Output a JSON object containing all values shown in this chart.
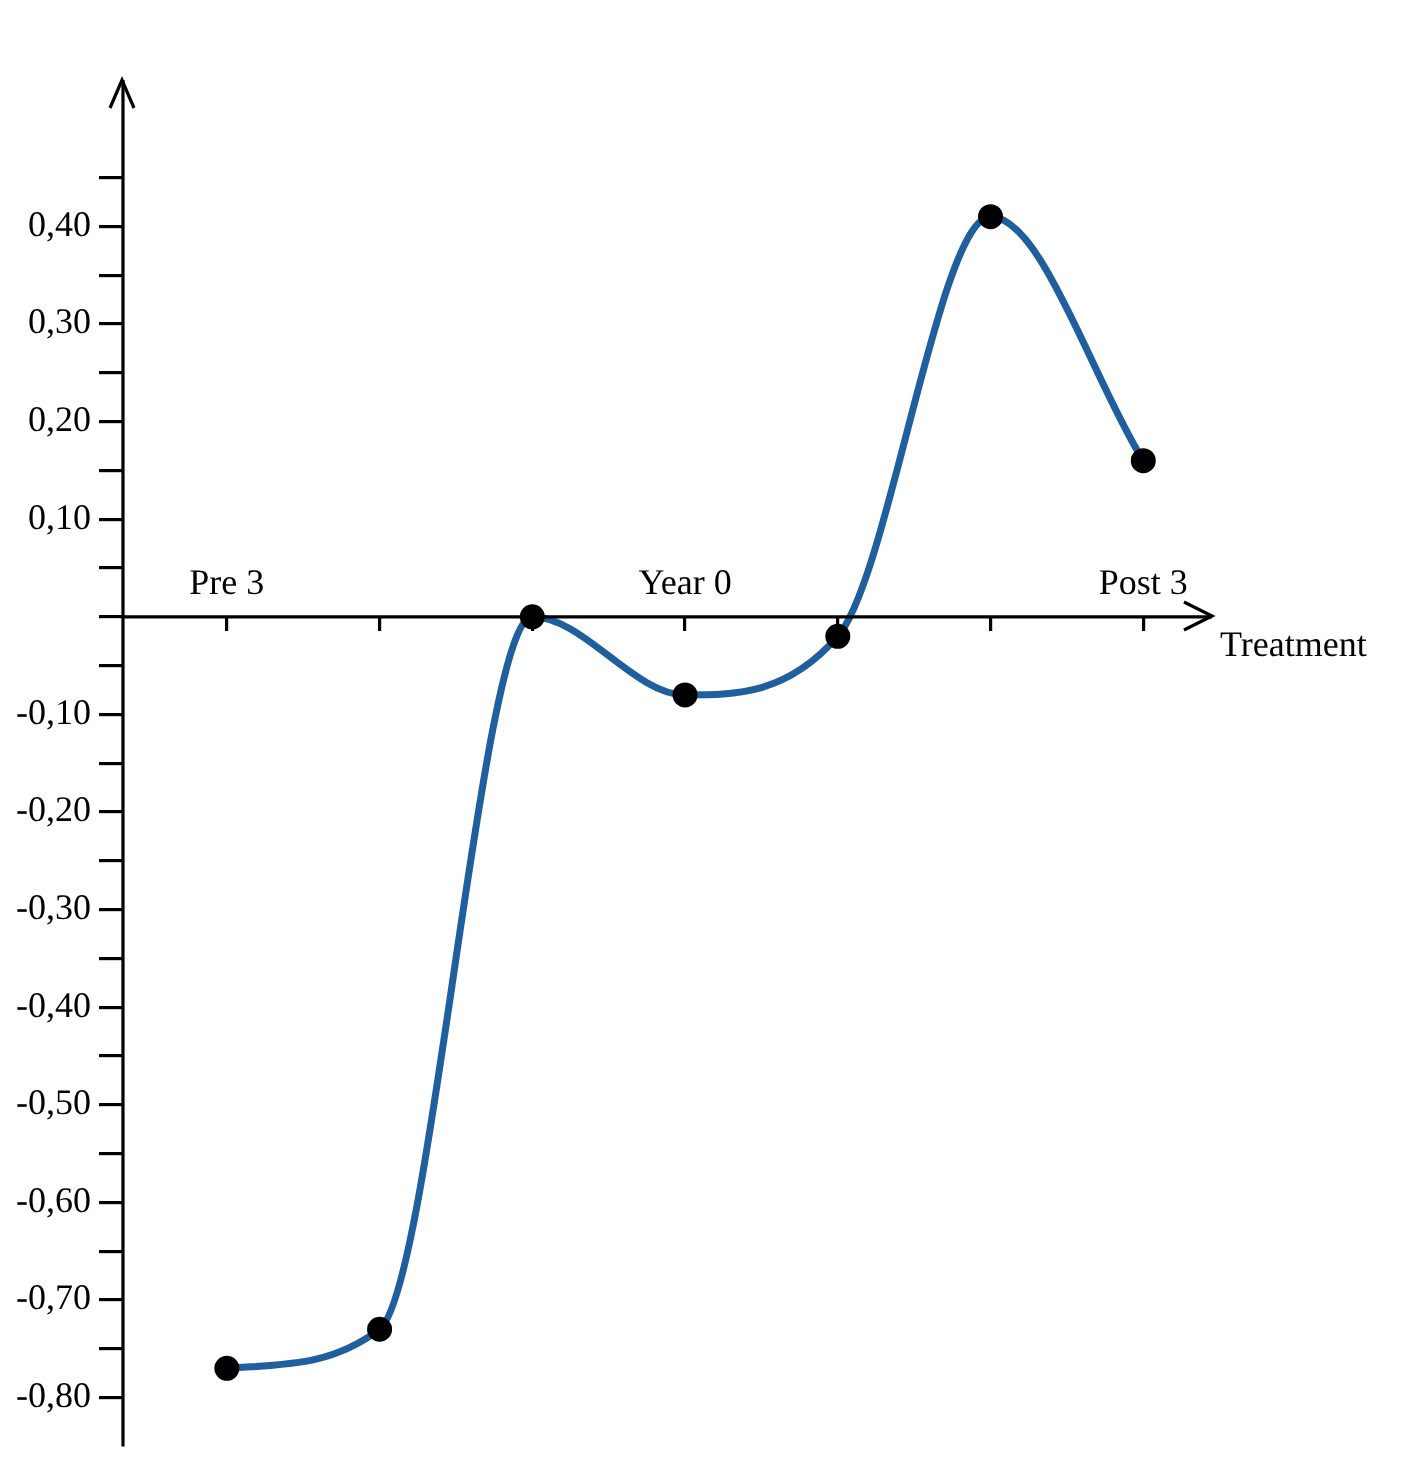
{
  "chart_data": {
    "type": "line",
    "xlabel": "Treatment",
    "categories": [
      "Pre 3",
      null,
      null,
      "Year 0",
      null,
      null,
      "Post 3"
    ],
    "series": [
      {
        "color": "#1f5f9e",
        "values": [
          -0.77,
          -0.73,
          0,
          -0.08,
          -0.02,
          0.41,
          0.16
        ]
      }
    ],
    "ylim": [
      -0.85,
      0.55
    ],
    "yticks": [
      {
        "value": -0.8,
        "label": "-0,80"
      },
      {
        "value": -0.75,
        "label": null
      },
      {
        "value": -0.7,
        "label": "-0,70"
      },
      {
        "value": -0.65,
        "label": null
      },
      {
        "value": -0.6,
        "label": "-0,60"
      },
      {
        "value": -0.55,
        "label": null
      },
      {
        "value": -0.5,
        "label": "-0,50"
      },
      {
        "value": -0.45,
        "label": null
      },
      {
        "value": -0.4,
        "label": "-0,40"
      },
      {
        "value": -0.35,
        "label": null
      },
      {
        "value": -0.3,
        "label": "-0,30"
      },
      {
        "value": -0.25,
        "label": null
      },
      {
        "value": -0.2,
        "label": "-0,20"
      },
      {
        "value": -0.15,
        "label": null
      },
      {
        "value": -0.1,
        "label": "-0,10"
      },
      {
        "value": -0.05,
        "label": null
      },
      {
        "value": 0,
        "label": null
      },
      {
        "value": 0.05,
        "label": null
      },
      {
        "value": 0.1,
        "label": "0,10"
      },
      {
        "value": 0.15,
        "label": null
      },
      {
        "value": 0.2,
        "label": "0,20"
      },
      {
        "value": 0.25,
        "label": null
      },
      {
        "value": 0.3,
        "label": "0,30"
      },
      {
        "value": 0.35,
        "label": null
      },
      {
        "value": 0.4,
        "label": "0,40"
      },
      {
        "value": 0.45,
        "label": null
      }
    ],
    "grid": false,
    "legend": false,
    "marker": "circle",
    "line_style": "solid"
  }
}
